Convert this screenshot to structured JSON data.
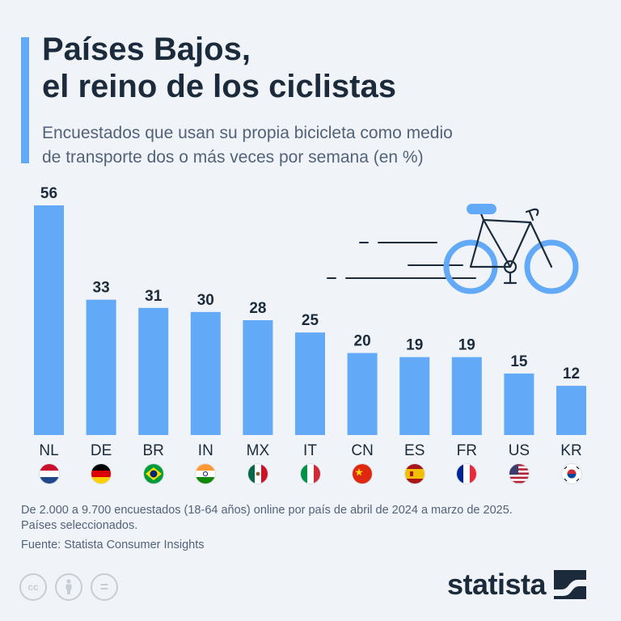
{
  "header": {
    "title_lines": [
      "Países Bajos,",
      "el reino de los ciclistas"
    ],
    "subtitle_lines": [
      "Encuestados que usan su propia bicicleta como medio",
      "de transporte dos o más veces por semana (en %)"
    ]
  },
  "chart_data": {
    "type": "bar",
    "categories": [
      "NL",
      "DE",
      "BR",
      "IN",
      "MX",
      "IT",
      "CN",
      "ES",
      "FR",
      "US",
      "KR"
    ],
    "values": [
      56,
      33,
      31,
      30,
      28,
      25,
      20,
      19,
      19,
      15,
      12
    ],
    "title": "Países Bajos, el reino de los ciclistas",
    "ylabel": "",
    "xlabel": "",
    "ylim": [
      0,
      56
    ],
    "grid": false,
    "bar_color": "#62a9f7"
  },
  "flags": [
    {
      "code": "NL",
      "icon": "netherlands-flag-icon"
    },
    {
      "code": "DE",
      "icon": "germany-flag-icon"
    },
    {
      "code": "BR",
      "icon": "brazil-flag-icon"
    },
    {
      "code": "IN",
      "icon": "india-flag-icon"
    },
    {
      "code": "MX",
      "icon": "mexico-flag-icon"
    },
    {
      "code": "IT",
      "icon": "italy-flag-icon"
    },
    {
      "code": "CN",
      "icon": "china-flag-icon"
    },
    {
      "code": "ES",
      "icon": "spain-flag-icon"
    },
    {
      "code": "FR",
      "icon": "france-flag-icon"
    },
    {
      "code": "US",
      "icon": "usa-flag-icon"
    },
    {
      "code": "KR",
      "icon": "south-korea-flag-icon"
    }
  ],
  "footer": {
    "note_lines": [
      "De 2.000 a 9.700 encuestados (18-64 años) online por país de abril de 2024 a marzo de 2025.",
      "Países seleccionados."
    ],
    "source": "Fuente: Statista Consumer Insights",
    "brand": "statista",
    "license_icons": [
      "cc-icon",
      "by-icon",
      "nd-icon"
    ],
    "cc_label": "cc",
    "nd_label": "="
  },
  "colors": {
    "background": "#f0f4f8",
    "accent": "#62a9f7",
    "text": "#1c2b3c",
    "muted": "#52627a",
    "bike_wheel": "#62a9f7",
    "bike_frame": "#1c2b3c"
  }
}
